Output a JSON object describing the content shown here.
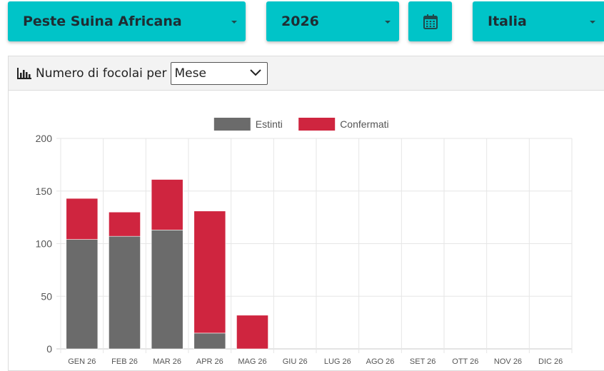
{
  "filters": {
    "disease": "Peste Suina Africana",
    "year": "2026",
    "country": "Italia"
  },
  "icons": {
    "calendar": "calendar-icon",
    "chart": "bar-chart-icon",
    "caret": "caret-down-icon"
  },
  "panel": {
    "title": "Numero di focolai per",
    "period_selected": "Mese"
  },
  "colors": {
    "accent": "#00c4c8",
    "estinti": "#6b6b6b",
    "confermati": "#cf253f"
  },
  "chart_data": {
    "type": "bar",
    "stacked": true,
    "categories": [
      "GEN 26",
      "FEB 26",
      "MAR 26",
      "APR 26",
      "MAG 26",
      "GIU 26",
      "LUG 26",
      "AGO 26",
      "SET 26",
      "OTT 26",
      "NOV 26",
      "DIC 26"
    ],
    "series": [
      {
        "name": "Estinti",
        "color": "#6b6b6b",
        "values": [
          104,
          107,
          113,
          15,
          0,
          0,
          0,
          0,
          0,
          0,
          0,
          0
        ]
      },
      {
        "name": "Confermati",
        "color": "#cf253f",
        "values": [
          39,
          23,
          48,
          116,
          32,
          0,
          0,
          0,
          0,
          0,
          0,
          0
        ]
      }
    ],
    "ylim": [
      0,
      200
    ],
    "yticks": [
      0,
      50,
      100,
      150,
      200
    ],
    "legend": "top-center",
    "grid": true
  }
}
